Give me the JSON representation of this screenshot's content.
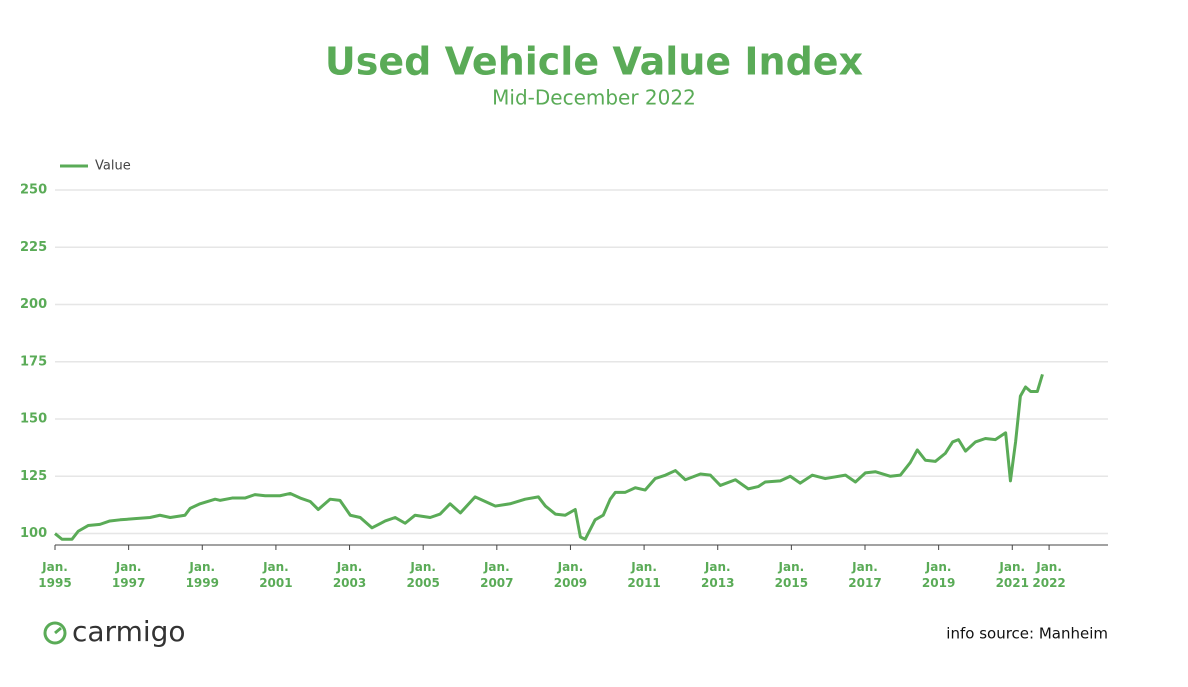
{
  "chart_data": {
    "type": "line",
    "title": "Used Vehicle Value Index",
    "subtitle": "Mid-December 2022",
    "x": [
      1995.0,
      1995.19,
      1995.46,
      1995.63,
      1995.9,
      1996.22,
      1996.49,
      1996.77,
      1997.17,
      1997.58,
      1997.85,
      1998.13,
      1998.53,
      1998.67,
      1998.94,
      1999.35,
      1999.48,
      1999.81,
      2000.16,
      2000.43,
      2000.71,
      2001.11,
      2001.39,
      2001.66,
      2001.93,
      2002.15,
      2002.47,
      2002.74,
      2003.02,
      2003.29,
      2003.61,
      2003.97,
      2004.24,
      2004.51,
      2004.78,
      2005.19,
      2005.46,
      2005.73,
      2006.01,
      2006.41,
      2006.82,
      2006.96,
      2007.36,
      2007.77,
      2008.13,
      2008.32,
      2008.59,
      2008.86,
      2009.13,
      2009.27,
      2009.4,
      2009.67,
      2009.89,
      2010.08,
      2010.22,
      2010.49,
      2010.76,
      2011.03,
      2011.3,
      2011.58,
      2011.85,
      2012.12,
      2012.53,
      2012.8,
      2013.07,
      2013.48,
      2013.83,
      2014.1,
      2014.29,
      2014.7,
      2014.97,
      2015.24,
      2015.57,
      2015.92,
      2016.47,
      2016.74,
      2017.01,
      2017.28,
      2017.69,
      2017.96,
      2018.23,
      2018.42,
      2018.64,
      2018.91,
      2019.18,
      2019.38,
      2019.54,
      2019.73,
      2020.0,
      2020.27,
      2020.54,
      2020.82,
      2020.95,
      2021.09,
      2021.22,
      2021.36,
      2021.5,
      2021.68,
      2021.82
    ],
    "series": [
      {
        "name": "Value",
        "color": "#5aab57",
        "values": [
          100,
          97.5,
          97.5,
          101,
          103.5,
          104,
          105.5,
          106,
          106.5,
          107,
          108,
          107,
          108,
          111,
          113,
          115,
          114.5,
          115.5,
          115.5,
          117,
          116.5,
          116.5,
          117.5,
          115.5,
          114,
          110.5,
          115,
          114.5,
          108,
          107,
          102.5,
          105.5,
          107,
          104.5,
          108,
          107,
          108.5,
          113,
          109,
          116,
          113,
          112,
          113,
          115,
          116,
          112,
          108.5,
          108,
          110.5,
          98.5,
          97.5,
          106,
          108,
          115,
          118,
          118,
          120,
          119,
          124,
          125.5,
          127.5,
          123.5,
          126,
          125.5,
          121,
          123.5,
          119.5,
          120.5,
          122.5,
          123,
          125,
          122,
          125.5,
          124,
          125.5,
          122.5,
          126.5,
          127,
          125,
          125.5,
          131,
          136.5,
          132,
          131.5,
          135,
          140,
          141,
          136,
          140,
          141.5,
          141,
          144,
          123,
          140,
          160,
          164,
          162,
          162,
          169.5
        ]
      }
    ],
    "xlim": [
      1995,
      2023.6
    ],
    "xticks": [
      {
        "value": 1995,
        "label": "Jan.\n1995"
      },
      {
        "value": 1997,
        "label": "Jan.\n1997"
      },
      {
        "value": 1999,
        "label": "Jan.\n1999"
      },
      {
        "value": 2001,
        "label": "Jan.\n2001"
      },
      {
        "value": 2003,
        "label": "Jan.\n2003"
      },
      {
        "value": 2005,
        "label": "Jan.\n2005"
      },
      {
        "value": 2007,
        "label": "Jan.\n2007"
      },
      {
        "value": 2009,
        "label": "Jan.\n2009"
      },
      {
        "value": 2011,
        "label": "Jan.\n2011"
      },
      {
        "value": 2013,
        "label": "Jan.\n2013"
      },
      {
        "value": 2015,
        "label": "Jan.\n2015"
      },
      {
        "value": 2017,
        "label": "Jan.\n2017"
      },
      {
        "value": 2019,
        "label": "Jan.\n2019"
      },
      {
        "value": 2021,
        "label": "Jan.\n2021"
      },
      {
        "value": 2022,
        "label": "Jan.\n2022"
      }
    ],
    "ylim": [
      95,
      250
    ],
    "yticks": [
      100,
      125,
      150,
      175,
      200,
      225,
      250
    ],
    "grid": true,
    "legend": "top-left"
  },
  "brand": "carmigo",
  "source": "info source: Manheim"
}
